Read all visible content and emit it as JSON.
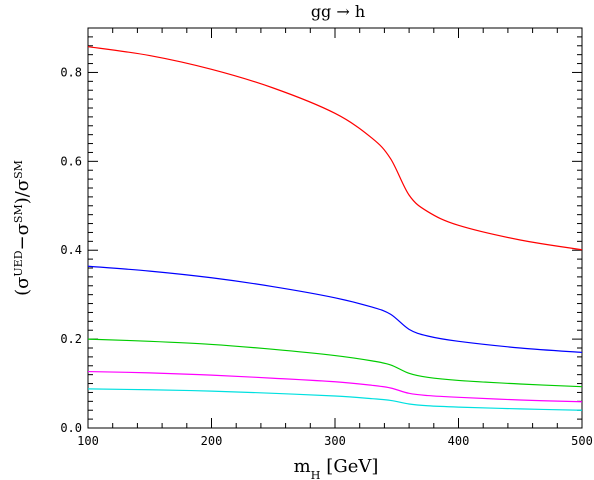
{
  "chart_data": {
    "type": "line",
    "title": "gg → h",
    "xlabel": "m_H [GeV]",
    "xlabel_main": "m",
    "xlabel_sub": "H",
    "xlabel_unit": "[GeV]",
    "ylabel": "(σ^UED − σ^SM)/σ^SM",
    "ylabel_parts": {
      "open": "(σ",
      "sup1": "UED",
      "minus": "−σ",
      "sup2": "SM",
      "close": ")/σ",
      "sup3": "SM"
    },
    "xlim": [
      100,
      500
    ],
    "ylim": [
      0,
      0.9
    ],
    "x_ticks": [
      100,
      200,
      300,
      400,
      500
    ],
    "x_tick_labels": [
      "100",
      "200",
      "300",
      "400",
      "500"
    ],
    "y_ticks": [
      0,
      0.2,
      0.4,
      0.6,
      0.8
    ],
    "y_tick_labels": [
      "0.0",
      "0.2",
      "0.4",
      "0.6",
      "0.8"
    ],
    "grid": false,
    "x": [
      100,
      150,
      200,
      250,
      300,
      330,
      345,
      360,
      375,
      400,
      450,
      500
    ],
    "series": [
      {
        "color": "#ff0000",
        "values": [
          0.858,
          0.838,
          0.807,
          0.765,
          0.708,
          0.652,
          0.606,
          0.524,
          0.487,
          0.456,
          0.423,
          0.401
        ]
      },
      {
        "color": "#0000ff",
        "values": [
          0.364,
          0.353,
          0.338,
          0.318,
          0.293,
          0.272,
          0.256,
          0.222,
          0.207,
          0.195,
          0.18,
          0.17
        ]
      },
      {
        "color": "#00cc00",
        "values": [
          0.2,
          0.195,
          0.188,
          0.177,
          0.163,
          0.151,
          0.142,
          0.123,
          0.114,
          0.107,
          0.099,
          0.093
        ]
      },
      {
        "color": "#ff00ff",
        "values": [
          0.127,
          0.124,
          0.119,
          0.112,
          0.104,
          0.096,
          0.09,
          0.078,
          0.073,
          0.069,
          0.063,
          0.059
        ]
      },
      {
        "color": "#00e0e0",
        "values": [
          0.088,
          0.086,
          0.083,
          0.078,
          0.072,
          0.066,
          0.062,
          0.054,
          0.05,
          0.047,
          0.043,
          0.04
        ]
      }
    ]
  }
}
